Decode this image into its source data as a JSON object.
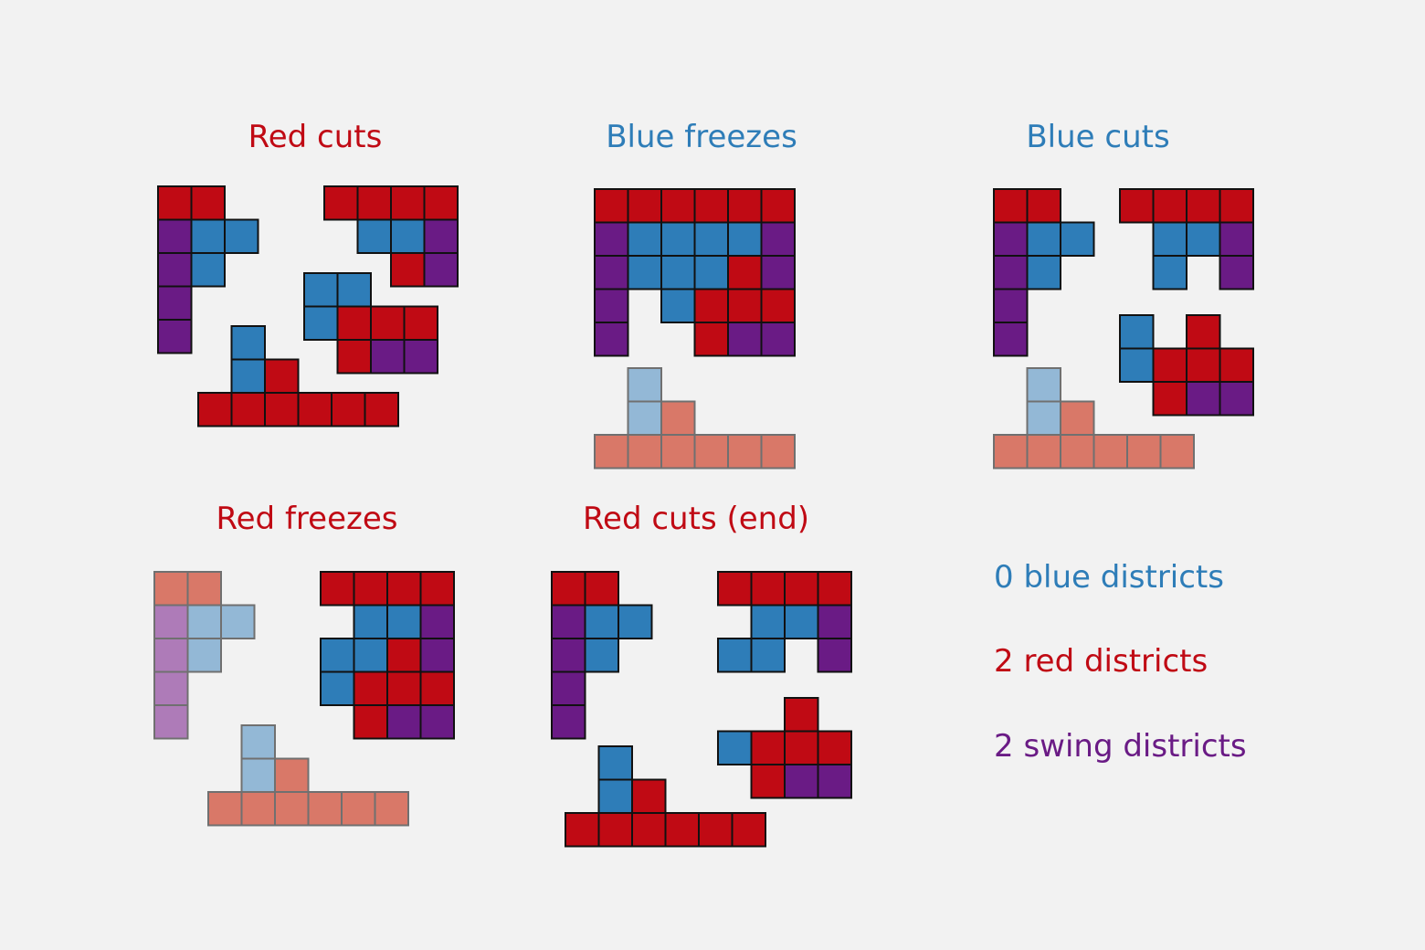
{
  "colors": {
    "red": "#c00a14",
    "blue": "#2e7db8",
    "purple": "#6a1b85",
    "red_faded": "#d97868",
    "blue_faded": "#93b8d6",
    "purple_faded": "#ae7bb8",
    "stroke": "#111111",
    "stroke_faded": "#707070",
    "background": "#f2f2f2"
  },
  "panels": [
    {
      "title": "Red cuts",
      "title_color": "red",
      "pieces": [
        {
          "faded": false,
          "cells": [
            [
              0,
              0,
              "red"
            ],
            [
              1,
              0,
              "red"
            ],
            [
              0,
              1,
              "purple"
            ],
            [
              1,
              1,
              "blue"
            ],
            [
              2,
              1,
              "blue"
            ],
            [
              0,
              2,
              "purple"
            ],
            [
              1,
              2,
              "blue"
            ],
            [
              0,
              3,
              "purple"
            ],
            [
              0,
              4,
              "purple"
            ]
          ]
        },
        {
          "faded": false,
          "cells": [
            [
              0,
              0,
              "red"
            ],
            [
              1,
              0,
              "red"
            ],
            [
              2,
              0,
              "red"
            ],
            [
              3,
              0,
              "red"
            ],
            [
              1,
              1,
              "blue"
            ],
            [
              2,
              1,
              "blue"
            ],
            [
              3,
              1,
              "purple"
            ],
            [
              2,
              2,
              "red"
            ],
            [
              3,
              2,
              "purple"
            ]
          ]
        },
        {
          "faded": false,
          "cells": [
            [
              0,
              0,
              "blue"
            ],
            [
              1,
              0,
              "blue"
            ],
            [
              0,
              1,
              "blue"
            ],
            [
              1,
              1,
              "red"
            ],
            [
              2,
              1,
              "red"
            ],
            [
              3,
              1,
              "red"
            ],
            [
              1,
              2,
              "red"
            ],
            [
              2,
              2,
              "purple"
            ],
            [
              3,
              2,
              "purple"
            ]
          ]
        },
        {
          "faded": false,
          "cells": [
            [
              1,
              0,
              "blue"
            ],
            [
              1,
              1,
              "blue"
            ],
            [
              2,
              1,
              "red"
            ],
            [
              0,
              2,
              "red"
            ],
            [
              1,
              2,
              "red"
            ],
            [
              2,
              2,
              "red"
            ],
            [
              3,
              2,
              "red"
            ],
            [
              4,
              2,
              "red"
            ],
            [
              5,
              2,
              "red"
            ]
          ]
        }
      ]
    },
    {
      "title": "Blue freezes",
      "title_color": "blue",
      "pieces": [
        {
          "faded": false,
          "cells": [
            [
              0,
              0,
              "red"
            ],
            [
              1,
              0,
              "red"
            ],
            [
              2,
              0,
              "red"
            ],
            [
              3,
              0,
              "red"
            ],
            [
              4,
              0,
              "red"
            ],
            [
              5,
              0,
              "red"
            ],
            [
              0,
              1,
              "purple"
            ],
            [
              1,
              1,
              "blue"
            ],
            [
              2,
              1,
              "blue"
            ],
            [
              3,
              1,
              "blue"
            ],
            [
              4,
              1,
              "blue"
            ],
            [
              5,
              1,
              "purple"
            ],
            [
              0,
              2,
              "purple"
            ],
            [
              1,
              2,
              "blue"
            ],
            [
              2,
              2,
              "blue"
            ],
            [
              3,
              2,
              "blue"
            ],
            [
              4,
              2,
              "red"
            ],
            [
              5,
              2,
              "purple"
            ],
            [
              0,
              3,
              "purple"
            ],
            [
              2,
              3,
              "blue"
            ],
            [
              3,
              3,
              "red"
            ],
            [
              4,
              3,
              "red"
            ],
            [
              5,
              3,
              "red"
            ],
            [
              0,
              4,
              "purple"
            ],
            [
              3,
              4,
              "red"
            ],
            [
              4,
              4,
              "purple"
            ],
            [
              5,
              4,
              "purple"
            ]
          ]
        },
        {
          "faded": true,
          "cells": [
            [
              1,
              0,
              "blue"
            ],
            [
              1,
              1,
              "blue"
            ],
            [
              2,
              1,
              "red"
            ],
            [
              0,
              2,
              "red"
            ],
            [
              1,
              2,
              "red"
            ],
            [
              2,
              2,
              "red"
            ],
            [
              3,
              2,
              "red"
            ],
            [
              4,
              2,
              "red"
            ],
            [
              5,
              2,
              "red"
            ]
          ]
        }
      ]
    },
    {
      "title": "Blue cuts",
      "title_color": "blue",
      "pieces": [
        {
          "faded": false,
          "cells": [
            [
              0,
              0,
              "red"
            ],
            [
              1,
              0,
              "red"
            ],
            [
              0,
              1,
              "purple"
            ],
            [
              1,
              1,
              "blue"
            ],
            [
              2,
              1,
              "blue"
            ],
            [
              0,
              2,
              "purple"
            ],
            [
              1,
              2,
              "blue"
            ],
            [
              0,
              3,
              "purple"
            ],
            [
              0,
              4,
              "purple"
            ]
          ]
        },
        {
          "faded": false,
          "cells": [
            [
              0,
              0,
              "red"
            ],
            [
              1,
              0,
              "red"
            ],
            [
              2,
              0,
              "red"
            ],
            [
              3,
              0,
              "red"
            ],
            [
              1,
              1,
              "blue"
            ],
            [
              2,
              1,
              "blue"
            ],
            [
              3,
              1,
              "purple"
            ],
            [
              1,
              2,
              "blue"
            ],
            [
              3,
              2,
              "purple"
            ]
          ]
        },
        {
          "faded": false,
          "cells": [
            [
              0,
              0,
              "blue"
            ],
            [
              2,
              0,
              "red"
            ],
            [
              0,
              1,
              "blue"
            ],
            [
              1,
              1,
              "red"
            ],
            [
              2,
              1,
              "red"
            ],
            [
              3,
              1,
              "red"
            ],
            [
              1,
              2,
              "red"
            ],
            [
              2,
              2,
              "purple"
            ],
            [
              3,
              2,
              "purple"
            ]
          ]
        },
        {
          "faded": true,
          "cells": [
            [
              1,
              0,
              "blue"
            ],
            [
              1,
              1,
              "blue"
            ],
            [
              2,
              1,
              "red"
            ],
            [
              0,
              2,
              "red"
            ],
            [
              1,
              2,
              "red"
            ],
            [
              2,
              2,
              "red"
            ],
            [
              3,
              2,
              "red"
            ],
            [
              4,
              2,
              "red"
            ],
            [
              5,
              2,
              "red"
            ]
          ]
        }
      ]
    },
    {
      "title": "Red freezes",
      "title_color": "red",
      "pieces": [
        {
          "faded": true,
          "cells": [
            [
              0,
              0,
              "red"
            ],
            [
              1,
              0,
              "red"
            ],
            [
              0,
              1,
              "purple"
            ],
            [
              1,
              1,
              "blue"
            ],
            [
              2,
              1,
              "blue"
            ],
            [
              0,
              2,
              "purple"
            ],
            [
              1,
              2,
              "blue"
            ],
            [
              0,
              3,
              "purple"
            ],
            [
              0,
              4,
              "purple"
            ]
          ]
        },
        {
          "faded": false,
          "cells": [
            [
              0,
              0,
              "red"
            ],
            [
              1,
              0,
              "red"
            ],
            [
              2,
              0,
              "red"
            ],
            [
              3,
              0,
              "red"
            ],
            [
              1,
              1,
              "blue"
            ],
            [
              2,
              1,
              "blue"
            ],
            [
              3,
              1,
              "purple"
            ],
            [
              0,
              2,
              "blue"
            ],
            [
              1,
              2,
              "blue"
            ],
            [
              2,
              2,
              "red"
            ],
            [
              3,
              2,
              "purple"
            ],
            [
              0,
              3,
              "blue"
            ],
            [
              1,
              3,
              "red"
            ],
            [
              2,
              3,
              "red"
            ],
            [
              3,
              3,
              "red"
            ],
            [
              1,
              4,
              "red"
            ],
            [
              2,
              4,
              "purple"
            ],
            [
              3,
              4,
              "purple"
            ]
          ]
        },
        {
          "faded": true,
          "cells": [
            [
              1,
              0,
              "blue"
            ],
            [
              1,
              1,
              "blue"
            ],
            [
              2,
              1,
              "red"
            ],
            [
              0,
              2,
              "red"
            ],
            [
              1,
              2,
              "red"
            ],
            [
              2,
              2,
              "red"
            ],
            [
              3,
              2,
              "red"
            ],
            [
              4,
              2,
              "red"
            ],
            [
              5,
              2,
              "red"
            ]
          ]
        }
      ]
    },
    {
      "title": "Red cuts (end)",
      "title_color": "red",
      "pieces": [
        {
          "faded": false,
          "cells": [
            [
              0,
              0,
              "red"
            ],
            [
              1,
              0,
              "red"
            ],
            [
              0,
              1,
              "purple"
            ],
            [
              1,
              1,
              "blue"
            ],
            [
              2,
              1,
              "blue"
            ],
            [
              0,
              2,
              "purple"
            ],
            [
              1,
              2,
              "blue"
            ],
            [
              0,
              3,
              "purple"
            ],
            [
              0,
              4,
              "purple"
            ]
          ]
        },
        {
          "faded": false,
          "cells": [
            [
              0,
              0,
              "red"
            ],
            [
              1,
              0,
              "red"
            ],
            [
              2,
              0,
              "red"
            ],
            [
              3,
              0,
              "red"
            ],
            [
              1,
              1,
              "blue"
            ],
            [
              2,
              1,
              "blue"
            ],
            [
              3,
              1,
              "purple"
            ],
            [
              0,
              2,
              "blue"
            ],
            [
              1,
              2,
              "blue"
            ],
            [
              3,
              2,
              "purple"
            ]
          ]
        },
        {
          "faded": false,
          "cells": [
            [
              2,
              0,
              "red"
            ],
            [
              0,
              1,
              "blue"
            ],
            [
              1,
              1,
              "red"
            ],
            [
              2,
              1,
              "red"
            ],
            [
              3,
              1,
              "red"
            ],
            [
              1,
              2,
              "red"
            ],
            [
              2,
              2,
              "purple"
            ],
            [
              3,
              2,
              "purple"
            ]
          ]
        },
        {
          "faded": false,
          "cells": [
            [
              1,
              0,
              "blue"
            ],
            [
              1,
              1,
              "blue"
            ],
            [
              2,
              1,
              "red"
            ],
            [
              0,
              2,
              "red"
            ],
            [
              1,
              2,
              "red"
            ],
            [
              2,
              2,
              "red"
            ],
            [
              3,
              2,
              "red"
            ],
            [
              4,
              2,
              "red"
            ],
            [
              5,
              2,
              "red"
            ]
          ]
        }
      ]
    }
  ],
  "legend": {
    "blue": "0 blue districts",
    "red": "2 red districts",
    "swing": "2 swing districts"
  }
}
